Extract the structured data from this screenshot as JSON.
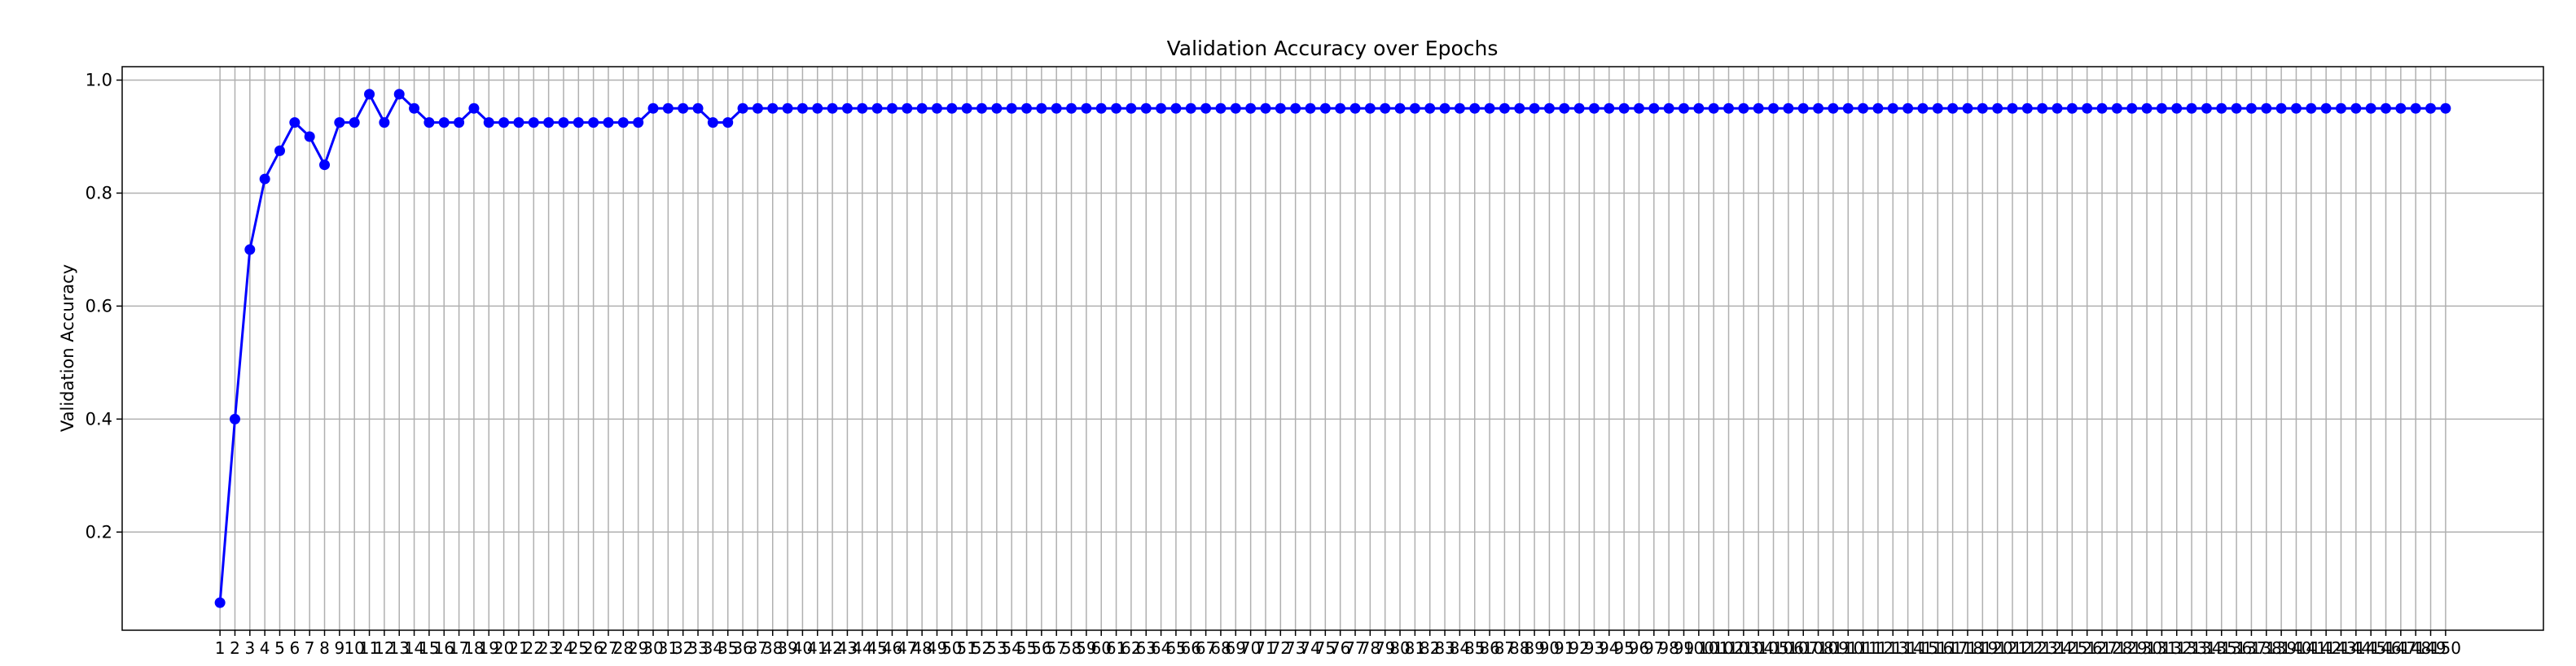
{
  "chart_data": {
    "type": "line",
    "title": "Validation Accuracy over Epochs",
    "xlabel": "",
    "ylabel": "Validation Accuracy",
    "x": [
      1,
      2,
      3,
      4,
      5,
      6,
      7,
      8,
      9,
      10,
      11,
      12,
      13,
      14,
      15,
      16,
      17,
      18,
      19,
      20,
      21,
      22,
      23,
      24,
      25,
      26,
      27,
      28,
      29,
      30,
      31,
      32,
      33,
      34,
      35,
      36,
      37,
      38,
      39,
      40,
      41,
      42,
      43,
      44,
      45,
      46,
      47,
      48,
      49,
      50,
      51,
      52,
      53,
      54,
      55,
      56,
      57,
      58,
      59,
      60,
      61,
      62,
      63,
      64,
      65,
      66,
      67,
      68,
      69,
      70,
      71,
      72,
      73,
      74,
      75,
      76,
      77,
      78,
      79,
      80,
      81,
      82,
      83,
      84,
      85,
      86,
      87,
      88,
      89,
      90,
      91,
      92,
      93,
      94,
      95,
      96,
      97,
      98,
      99,
      100,
      101,
      102,
      103,
      104,
      105,
      106,
      107,
      108,
      109,
      110,
      111,
      112,
      113,
      114,
      115,
      116,
      117,
      118,
      119,
      120,
      121,
      122,
      123,
      124,
      125,
      126,
      127,
      128,
      129,
      130,
      131,
      132,
      133,
      134,
      135,
      136,
      137,
      138,
      139,
      140,
      141,
      142,
      143,
      144,
      145,
      146,
      147,
      148,
      149,
      150
    ],
    "series": [
      {
        "color": "#0000ff",
        "values": [
          0.075,
          0.4,
          0.7,
          0.825,
          0.875,
          0.925,
          0.9,
          0.85,
          0.925,
          0.925,
          0.975,
          0.925,
          0.975,
          0.95,
          0.925,
          0.925,
          0.925,
          0.95,
          0.925,
          0.925,
          0.925,
          0.925,
          0.925,
          0.925,
          0.925,
          0.925,
          0.925,
          0.925,
          0.925,
          0.95,
          0.95,
          0.95,
          0.95,
          0.925,
          0.925,
          0.95,
          0.95,
          0.95,
          0.95,
          0.95,
          0.95,
          0.95,
          0.95,
          0.95,
          0.95,
          0.95,
          0.95,
          0.95,
          0.95,
          0.95,
          0.95,
          0.95,
          0.95,
          0.95,
          0.95,
          0.95,
          0.95,
          0.95,
          0.95,
          0.95,
          0.95,
          0.95,
          0.95,
          0.95,
          0.95,
          0.95,
          0.95,
          0.95,
          0.95,
          0.95,
          0.95,
          0.95,
          0.95,
          0.95,
          0.95,
          0.95,
          0.95,
          0.95,
          0.95,
          0.95,
          0.95,
          0.95,
          0.95,
          0.95,
          0.95,
          0.95,
          0.95,
          0.95,
          0.95,
          0.95,
          0.95,
          0.95,
          0.95,
          0.95,
          0.95,
          0.95,
          0.95,
          0.95,
          0.95,
          0.95,
          0.95,
          0.95,
          0.95,
          0.95,
          0.95,
          0.95,
          0.95,
          0.95,
          0.95,
          0.95,
          0.95,
          0.95,
          0.95,
          0.95,
          0.95,
          0.95,
          0.95,
          0.95,
          0.95,
          0.95,
          0.95,
          0.95,
          0.95,
          0.95,
          0.95,
          0.95,
          0.95,
          0.95,
          0.95,
          0.95,
          0.95,
          0.95,
          0.95,
          0.95,
          0.95,
          0.95,
          0.95,
          0.95,
          0.95,
          0.95,
          0.95,
          0.95,
          0.95,
          0.95,
          0.95,
          0.95,
          0.95,
          0.95,
          0.95,
          0.95
        ]
      }
    ],
    "xlim": [
      -5.55,
      156.55
    ],
    "ylim": [
      0.02625,
      1.02375
    ],
    "yticks": [
      0.2,
      0.4,
      0.6,
      0.8,
      1.0
    ],
    "ytick_labels": [
      "0.2",
      "0.4",
      "0.6",
      "0.8",
      "1.0"
    ],
    "grid": true,
    "marker": "circle",
    "legend": "none"
  }
}
